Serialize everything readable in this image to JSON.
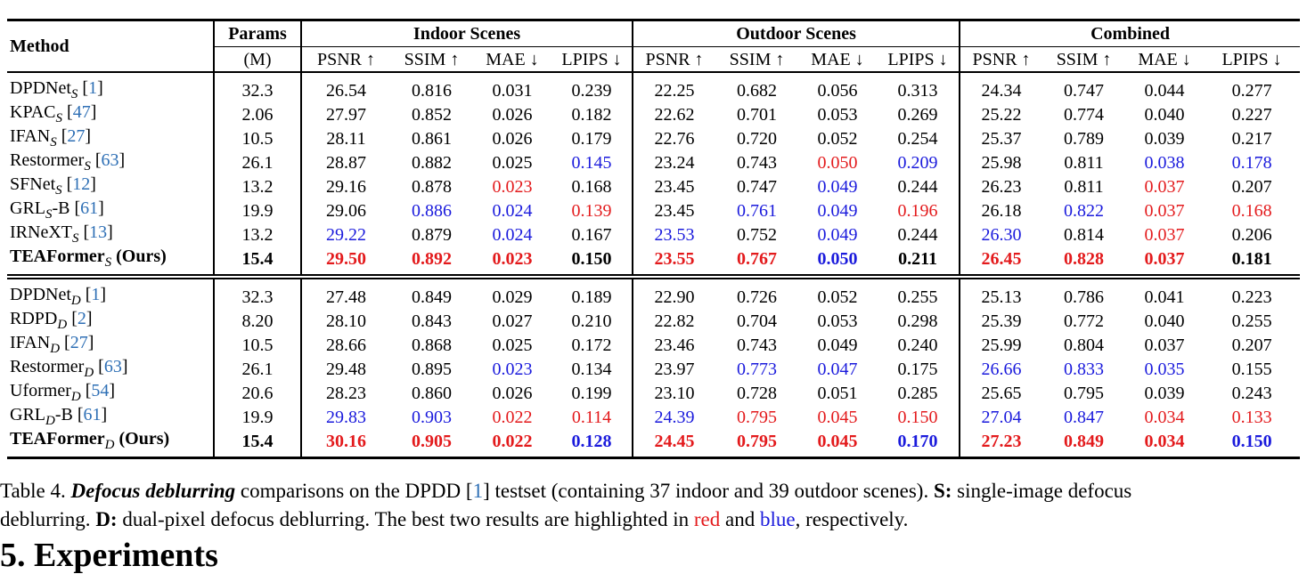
{
  "table": {
    "headers": {
      "method": "Method",
      "params": "Params",
      "params_unit": "(M)",
      "groups": [
        "Indoor Scenes",
        "Outdoor Scenes",
        "Combined"
      ],
      "metrics": [
        "PSNR ↑",
        "SSIM ↑",
        "MAE ↓",
        "LPIPS ↓"
      ]
    },
    "sections": [
      {
        "rows": [
          {
            "name": "DPDNet",
            "sub": "S",
            "suffix": "",
            "cite": "1",
            "params": "32.3",
            "vals": [
              "26.54",
              "0.816",
              "0.031",
              "0.239",
              "22.25",
              "0.682",
              "0.056",
              "0.313",
              "24.34",
              "0.747",
              "0.044",
              "0.277"
            ],
            "hl": [
              "",
              "",
              "",
              "",
              "",
              "",
              "",
              "",
              "",
              "",
              "",
              ""
            ]
          },
          {
            "name": "KPAC",
            "sub": "S",
            "suffix": "",
            "cite": "47",
            "params": "2.06",
            "vals": [
              "27.97",
              "0.852",
              "0.026",
              "0.182",
              "22.62",
              "0.701",
              "0.053",
              "0.269",
              "25.22",
              "0.774",
              "0.040",
              "0.227"
            ],
            "hl": [
              "",
              "",
              "",
              "",
              "",
              "",
              "",
              "",
              "",
              "",
              "",
              ""
            ]
          },
          {
            "name": "IFAN",
            "sub": "S",
            "suffix": "",
            "cite": "27",
            "params": "10.5",
            "vals": [
              "28.11",
              "0.861",
              "0.026",
              "0.179",
              "22.76",
              "0.720",
              "0.052",
              "0.254",
              "25.37",
              "0.789",
              "0.039",
              "0.217"
            ],
            "hl": [
              "",
              "",
              "",
              "",
              "",
              "",
              "",
              "",
              "",
              "",
              "",
              ""
            ]
          },
          {
            "name": "Restormer",
            "sub": "S",
            "suffix": "",
            "cite": "63",
            "params": "26.1",
            "vals": [
              "28.87",
              "0.882",
              "0.025",
              "0.145",
              "23.24",
              "0.743",
              "0.050",
              "0.209",
              "25.98",
              "0.811",
              "0.038",
              "0.178"
            ],
            "hl": [
              "",
              "",
              "",
              "b",
              "",
              "",
              "r",
              "b",
              "",
              "",
              "b",
              "b"
            ]
          },
          {
            "name": "SFNet",
            "sub": "S",
            "suffix": "",
            "cite": "12",
            "params": "13.2",
            "vals": [
              "29.16",
              "0.878",
              "0.023",
              "0.168",
              "23.45",
              "0.747",
              "0.049",
              "0.244",
              "26.23",
              "0.811",
              "0.037",
              "0.207"
            ],
            "hl": [
              "",
              "",
              "r",
              "",
              "",
              "",
              "b",
              "",
              "",
              "",
              "r",
              ""
            ]
          },
          {
            "name": "GRL",
            "sub": "S",
            "suffix": "-B",
            "cite": "61",
            "params": "19.9",
            "vals": [
              "29.06",
              "0.886",
              "0.024",
              "0.139",
              "23.45",
              "0.761",
              "0.049",
              "0.196",
              "26.18",
              "0.822",
              "0.037",
              "0.168"
            ],
            "hl": [
              "",
              "b",
              "b",
              "r",
              "",
              "b",
              "b",
              "r",
              "",
              "b",
              "r",
              "r"
            ]
          },
          {
            "name": "IRNeXT",
            "sub": "S",
            "suffix": "",
            "cite": "13",
            "params": "13.2",
            "vals": [
              "29.22",
              "0.879",
              "0.024",
              "0.167",
              "23.53",
              "0.752",
              "0.049",
              "0.244",
              "26.30",
              "0.814",
              "0.037",
              "0.206"
            ],
            "hl": [
              "b",
              "",
              "b",
              "",
              "b",
              "",
              "b",
              "",
              "b",
              "",
              "r",
              ""
            ]
          },
          {
            "name": "TEAFormer",
            "sub": "S",
            "suffix": " (Ours)",
            "cite": "",
            "bold": true,
            "params": "15.4",
            "vals": [
              "29.50",
              "0.892",
              "0.023",
              "0.150",
              "23.55",
              "0.767",
              "0.050",
              "0.211",
              "26.45",
              "0.828",
              "0.037",
              "0.181"
            ],
            "hl": [
              "r",
              "r",
              "r",
              "",
              "r",
              "r",
              "b",
              "",
              "r",
              "r",
              "r",
              ""
            ]
          }
        ]
      },
      {
        "rows": [
          {
            "name": "DPDNet",
            "sub": "D",
            "suffix": "",
            "cite": "1",
            "params": "32.3",
            "vals": [
              "27.48",
              "0.849",
              "0.029",
              "0.189",
              "22.90",
              "0.726",
              "0.052",
              "0.255",
              "25.13",
              "0.786",
              "0.041",
              "0.223"
            ],
            "hl": [
              "",
              "",
              "",
              "",
              "",
              "",
              "",
              "",
              "",
              "",
              "",
              ""
            ]
          },
          {
            "name": "RDPD",
            "sub": "D",
            "suffix": "",
            "cite": "2",
            "params": "8.20",
            "vals": [
              "28.10",
              "0.843",
              "0.027",
              "0.210",
              "22.82",
              "0.704",
              "0.053",
              "0.298",
              "25.39",
              "0.772",
              "0.040",
              "0.255"
            ],
            "hl": [
              "",
              "",
              "",
              "",
              "",
              "",
              "",
              "",
              "",
              "",
              "",
              ""
            ]
          },
          {
            "name": "IFAN",
            "sub": "D",
            "suffix": "",
            "cite": "27",
            "params": "10.5",
            "vals": [
              "28.66",
              "0.868",
              "0.025",
              "0.172",
              "23.46",
              "0.743",
              "0.049",
              "0.240",
              "25.99",
              "0.804",
              "0.037",
              "0.207"
            ],
            "hl": [
              "",
              "",
              "",
              "",
              "",
              "",
              "",
              "",
              "",
              "",
              "",
              ""
            ]
          },
          {
            "name": "Restormer",
            "sub": "D",
            "suffix": "",
            "cite": "63",
            "params": "26.1",
            "vals": [
              "29.48",
              "0.895",
              "0.023",
              "0.134",
              "23.97",
              "0.773",
              "0.047",
              "0.175",
              "26.66",
              "0.833",
              "0.035",
              "0.155"
            ],
            "hl": [
              "",
              "",
              "b",
              "",
              "",
              "b",
              "b",
              "",
              "b",
              "b",
              "b",
              ""
            ]
          },
          {
            "name": "Uformer",
            "sub": "D",
            "suffix": "",
            "cite": "54",
            "params": "20.6",
            "vals": [
              "28.23",
              "0.860",
              "0.026",
              "0.199",
              "23.10",
              "0.728",
              "0.051",
              "0.285",
              "25.65",
              "0.795",
              "0.039",
              "0.243"
            ],
            "hl": [
              "",
              "",
              "",
              "",
              "",
              "",
              "",
              "",
              "",
              "",
              "",
              ""
            ]
          },
          {
            "name": "GRL",
            "sub": "D",
            "suffix": "-B",
            "cite": "61",
            "params": "19.9",
            "vals": [
              "29.83",
              "0.903",
              "0.022",
              "0.114",
              "24.39",
              "0.795",
              "0.045",
              "0.150",
              "27.04",
              "0.847",
              "0.034",
              "0.133"
            ],
            "hl": [
              "b",
              "b",
              "r",
              "r",
              "b",
              "r",
              "r",
              "r",
              "b",
              "b",
              "r",
              "r"
            ]
          },
          {
            "name": "TEAFormer",
            "sub": "D",
            "suffix": " (Ours)",
            "cite": "",
            "bold": true,
            "params": "15.4",
            "vals": [
              "30.16",
              "0.905",
              "0.022",
              "0.128",
              "24.45",
              "0.795",
              "0.045",
              "0.170",
              "27.23",
              "0.849",
              "0.034",
              "0.150"
            ],
            "hl": [
              "r",
              "r",
              "r",
              "b",
              "r",
              "r",
              "r",
              "b",
              "r",
              "r",
              "r",
              "b"
            ]
          }
        ]
      }
    ]
  },
  "caption": {
    "label": "Table 4.",
    "emph": "Defocus deblurring",
    "t1": " comparisons on the DPDD [",
    "cite": "1",
    "t2": "] testset (containing 37 indoor and 39 outdoor scenes). ",
    "s_label": "S:",
    "t3": " single-image defocus",
    "line2a": "deblurring. ",
    "d_label": "D:",
    "t4": " dual-pixel defocus deblurring. The best two results are highlighted in ",
    "red_word": "red",
    "and_word": " and ",
    "blue_word": "blue",
    "t5": ", respectively."
  },
  "section_heading": "5. Experiments",
  "colors": {
    "red": "#e31a1c",
    "blue": "#1a1adc",
    "cite": "#2e6fb5"
  }
}
